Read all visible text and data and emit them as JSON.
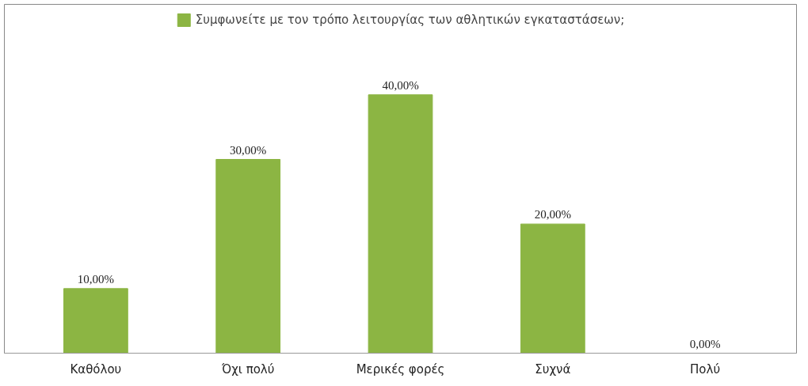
{
  "chart_data": {
    "type": "bar",
    "categories": [
      "Καθόλου",
      "Όχι πολύ",
      "Μερικές φορές",
      "Συχνά",
      "Πολύ"
    ],
    "series": [
      {
        "name": "Συμφωνείτε με τον τρόπο λειτουργίας των αθλητικών εγκαταστάσεων;",
        "color": "#8cb543",
        "values": [
          10,
          30,
          40,
          20,
          0
        ],
        "value_labels": [
          "10,00%",
          "30,00%",
          "40,00%",
          "20,00%",
          "0,00%"
        ]
      }
    ],
    "legend": "top"
  }
}
